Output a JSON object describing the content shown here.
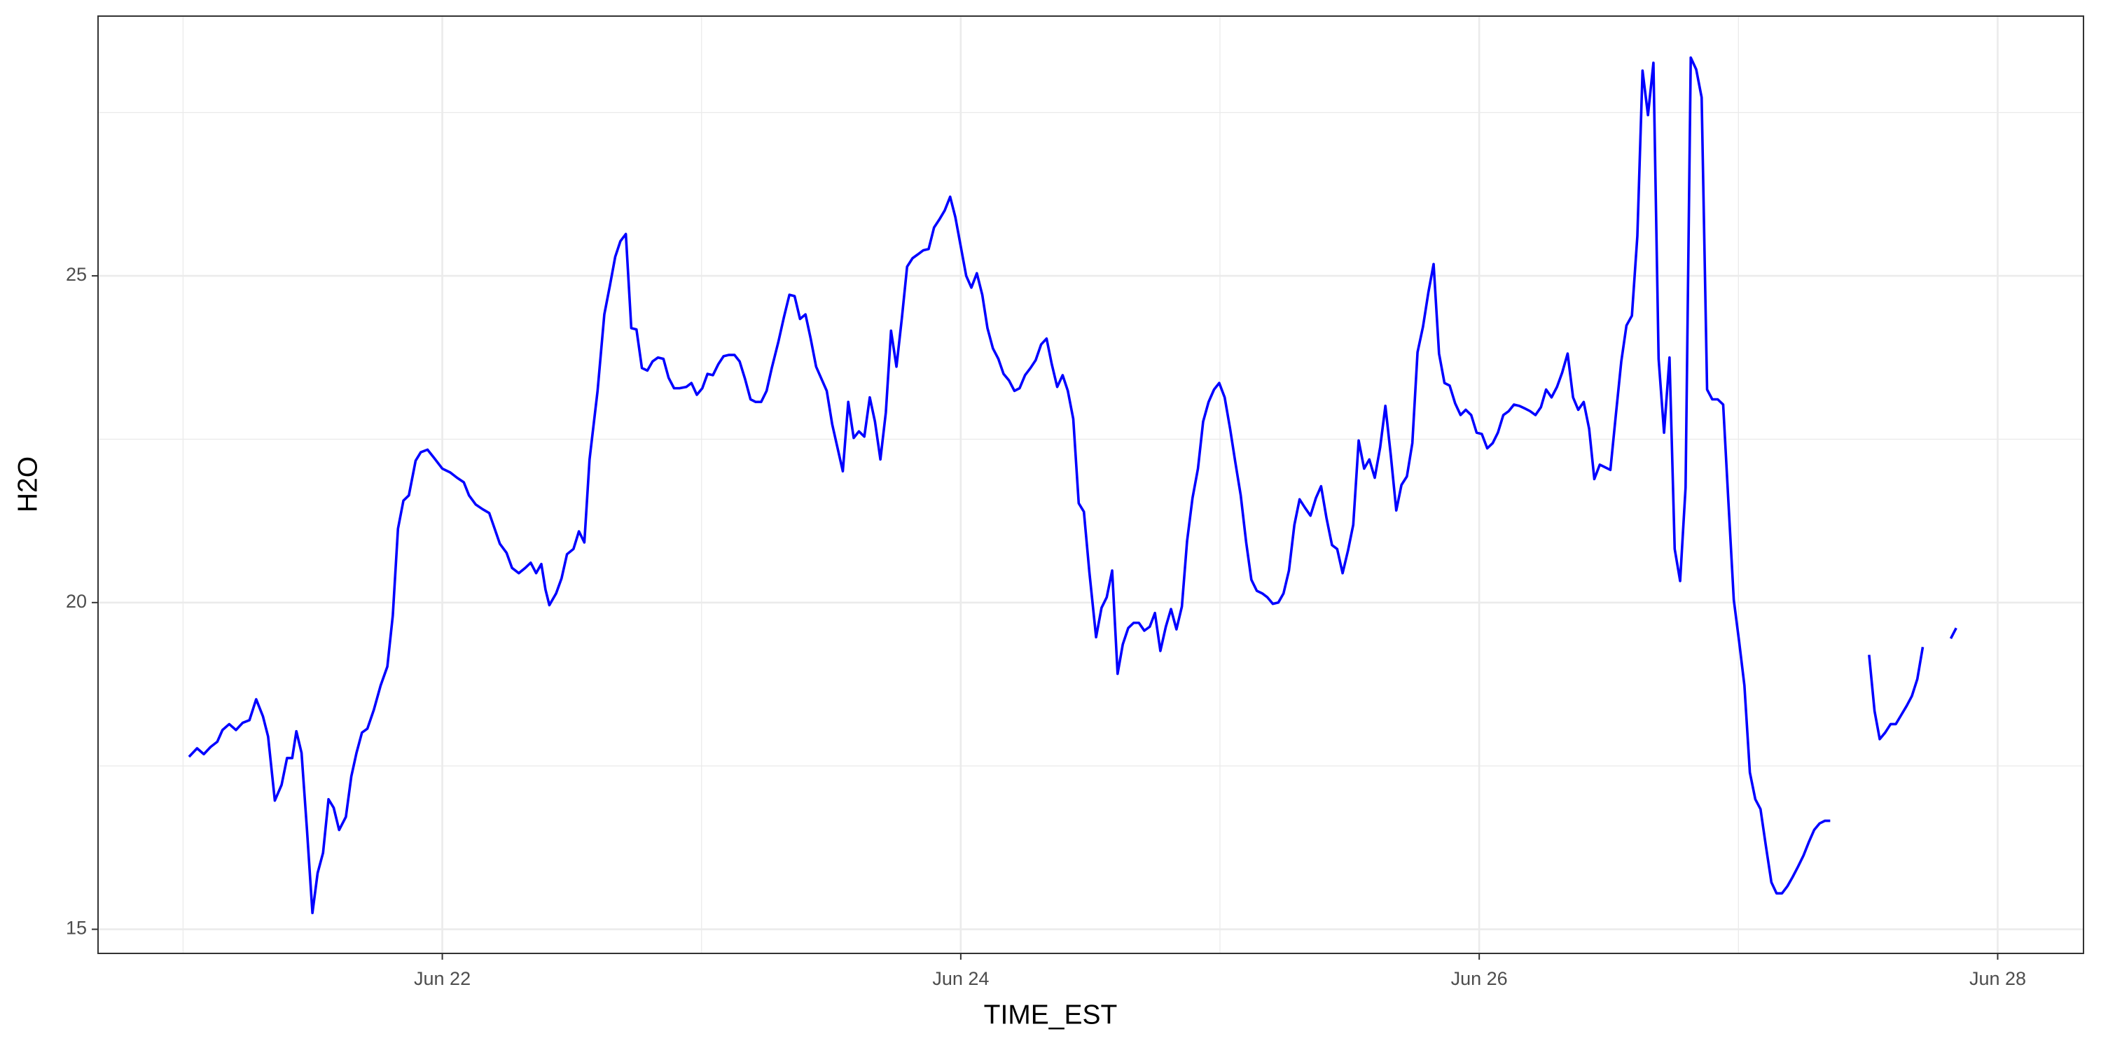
{
  "chart_data": {
    "type": "line",
    "x_label": "TIME_EST",
    "y_label": "H2O",
    "x": [
      21.023,
      21.054,
      21.08,
      21.106,
      21.132,
      21.152,
      21.178,
      21.204,
      21.23,
      21.256,
      21.282,
      21.308,
      21.328,
      21.354,
      21.38,
      21.401,
      21.421,
      21.437,
      21.457,
      21.478,
      21.499,
      21.519,
      21.54,
      21.561,
      21.581,
      21.602,
      21.628,
      21.649,
      21.669,
      21.69,
      21.711,
      21.736,
      21.762,
      21.788,
      21.809,
      21.829,
      21.85,
      21.871,
      21.897,
      21.917,
      21.943,
      21.969,
      22.0,
      22.031,
      22.057,
      22.083,
      22.103,
      22.129,
      22.155,
      22.181,
      22.202,
      22.222,
      22.248,
      22.269,
      22.295,
      22.32,
      22.341,
      22.362,
      22.382,
      22.398,
      22.413,
      22.439,
      22.46,
      22.481,
      22.506,
      22.527,
      22.548,
      22.568,
      22.599,
      22.625,
      22.646,
      22.667,
      22.687,
      22.708,
      22.729,
      22.749,
      22.77,
      22.791,
      22.811,
      22.832,
      22.853,
      22.873,
      22.894,
      22.915,
      22.941,
      22.961,
      22.982,
      23.003,
      23.023,
      23.044,
      23.065,
      23.085,
      23.106,
      23.127,
      23.147,
      23.168,
      23.189,
      23.209,
      23.23,
      23.251,
      23.271,
      23.297,
      23.318,
      23.339,
      23.359,
      23.38,
      23.401,
      23.421,
      23.442,
      23.463,
      23.483,
      23.504,
      23.525,
      23.545,
      23.566,
      23.587,
      23.607,
      23.628,
      23.649,
      23.669,
      23.69,
      23.711,
      23.731,
      23.752,
      23.773,
      23.793,
      23.814,
      23.835,
      23.855,
      23.876,
      23.897,
      23.917,
      23.938,
      23.959,
      23.979,
      24.0,
      24.021,
      24.041,
      24.062,
      24.083,
      24.103,
      24.124,
      24.145,
      24.165,
      24.186,
      24.207,
      24.227,
      24.248,
      24.269,
      24.289,
      24.31,
      24.331,
      24.351,
      24.372,
      24.393,
      24.413,
      24.434,
      24.455,
      24.475,
      24.496,
      24.522,
      24.543,
      24.563,
      24.584,
      24.605,
      24.625,
      24.646,
      24.667,
      24.687,
      24.708,
      24.729,
      24.749,
      24.77,
      24.791,
      24.811,
      24.832,
      24.853,
      24.873,
      24.894,
      24.915,
      24.935,
      24.956,
      24.977,
      24.997,
      25.018,
      25.039,
      25.059,
      25.08,
      25.101,
      25.121,
      25.142,
      25.163,
      25.183,
      25.204,
      25.225,
      25.245,
      25.266,
      25.287,
      25.307,
      25.328,
      25.349,
      25.37,
      25.39,
      25.411,
      25.432,
      25.452,
      25.473,
      25.494,
      25.514,
      25.535,
      25.556,
      25.576,
      25.597,
      25.618,
      25.638,
      25.659,
      25.68,
      25.7,
      25.721,
      25.742,
      25.762,
      25.783,
      25.804,
      25.824,
      25.845,
      25.866,
      25.886,
      25.907,
      25.928,
      25.948,
      25.969,
      25.99,
      26.01,
      26.031,
      26.052,
      26.072,
      26.093,
      26.114,
      26.134,
      26.155,
      26.176,
      26.196,
      26.217,
      26.238,
      26.258,
      26.279,
      26.3,
      26.32,
      26.341,
      26.362,
      26.382,
      26.403,
      26.424,
      26.444,
      26.465,
      26.486,
      26.506,
      26.527,
      26.548,
      26.568,
      26.589,
      26.61,
      26.63,
      26.651,
      26.672,
      26.692,
      26.713,
      26.734,
      26.754,
      26.775,
      26.796,
      26.816,
      26.837,
      26.858,
      26.879,
      26.899,
      26.92,
      26.941,
      26.961,
      26.982,
      27.003,
      27.023,
      27.044,
      27.065,
      27.085,
      27.106,
      27.127,
      27.147,
      27.168,
      27.189,
      27.209,
      27.23,
      27.251,
      27.271,
      27.292,
      27.313,
      27.333,
      27.354,
      27.43,
      27.504,
      27.525,
      27.545,
      27.566,
      27.587,
      27.607,
      27.628,
      27.649,
      27.669,
      27.69,
      27.711,
      27.76,
      27.819,
      27.84
    ],
    "series": [
      {
        "name": "H2O",
        "color": "#0000ff",
        "values": [
          17.64,
          17.77,
          17.68,
          17.79,
          17.87,
          18.05,
          18.14,
          18.05,
          18.16,
          18.2,
          18.52,
          18.26,
          17.95,
          16.97,
          17.21,
          17.62,
          17.62,
          18.03,
          17.7,
          16.52,
          15.25,
          15.86,
          16.17,
          16.99,
          16.86,
          16.52,
          16.72,
          17.34,
          17.7,
          18.01,
          18.07,
          18.36,
          18.73,
          19.02,
          19.8,
          21.13,
          21.56,
          21.64,
          22.17,
          22.3,
          22.34,
          22.21,
          22.05,
          21.99,
          21.91,
          21.84,
          21.64,
          21.5,
          21.43,
          21.37,
          21.13,
          20.9,
          20.76,
          20.53,
          20.45,
          20.53,
          20.61,
          20.45,
          20.59,
          20.2,
          19.96,
          20.14,
          20.37,
          20.74,
          20.82,
          21.09,
          20.92,
          22.19,
          23.24,
          24.41,
          24.84,
          25.29,
          25.53,
          25.64,
          24.2,
          24.18,
          23.59,
          23.55,
          23.69,
          23.75,
          23.73,
          23.44,
          23.28,
          23.28,
          23.3,
          23.36,
          23.18,
          23.28,
          23.5,
          23.48,
          23.65,
          23.77,
          23.79,
          23.79,
          23.69,
          23.42,
          23.11,
          23.07,
          23.07,
          23.24,
          23.59,
          24.0,
          24.37,
          24.71,
          24.69,
          24.34,
          24.41,
          24.04,
          23.61,
          23.42,
          23.24,
          22.73,
          22.36,
          22.01,
          23.07,
          22.52,
          22.62,
          22.54,
          23.14,
          22.77,
          22.19,
          22.91,
          24.16,
          23.61,
          24.36,
          25.14,
          25.27,
          25.33,
          25.39,
          25.41,
          25.74,
          25.86,
          26.0,
          26.21,
          25.9,
          25.45,
          25.0,
          24.82,
          25.04,
          24.71,
          24.2,
          23.89,
          23.73,
          23.5,
          23.4,
          23.24,
          23.28,
          23.48,
          23.59,
          23.71,
          23.95,
          24.04,
          23.65,
          23.3,
          23.48,
          23.24,
          22.81,
          21.52,
          21.39,
          20.47,
          19.47,
          19.92,
          20.08,
          20.49,
          18.91,
          19.36,
          19.61,
          19.69,
          19.69,
          19.57,
          19.63,
          19.84,
          19.26,
          19.63,
          19.9,
          19.59,
          19.94,
          20.94,
          21.6,
          22.05,
          22.77,
          23.07,
          23.26,
          23.36,
          23.14,
          22.66,
          22.15,
          21.64,
          20.92,
          20.35,
          20.18,
          20.14,
          20.08,
          19.98,
          20.0,
          20.14,
          20.49,
          21.19,
          21.58,
          21.45,
          21.33,
          21.6,
          21.78,
          21.29,
          20.88,
          20.82,
          20.45,
          20.8,
          21.19,
          22.48,
          22.05,
          22.19,
          21.91,
          22.38,
          23.01,
          22.25,
          21.41,
          21.8,
          21.93,
          22.44,
          23.83,
          24.22,
          24.75,
          25.18,
          23.81,
          23.36,
          23.32,
          23.05,
          22.87,
          22.95,
          22.87,
          22.6,
          22.58,
          22.36,
          22.44,
          22.6,
          22.87,
          22.93,
          23.03,
          23.01,
          22.97,
          22.93,
          22.87,
          22.99,
          23.26,
          23.14,
          23.3,
          23.52,
          23.81,
          23.14,
          22.95,
          23.07,
          22.66,
          21.89,
          22.11,
          22.07,
          22.03,
          22.87,
          23.69,
          24.24,
          24.39,
          25.61,
          28.14,
          27.46,
          28.26,
          23.73,
          22.6,
          23.75,
          20.82,
          20.33,
          21.76,
          28.34,
          28.16,
          27.73,
          23.26,
          23.11,
          23.11,
          23.03,
          21.56,
          20.04,
          19.39,
          18.73,
          17.4,
          16.99,
          16.84,
          16.27,
          15.72,
          15.55,
          15.55,
          15.66,
          15.8,
          15.96,
          16.13,
          16.33,
          16.52,
          16.62,
          16.66,
          16.66,
          null,
          19.2,
          18.34,
          17.91,
          18.01,
          18.14,
          18.14,
          18.28,
          18.42,
          18.57,
          18.83,
          19.32,
          null,
          19.45,
          19.61
        ]
      }
    ],
    "xlim": [
      20.672,
      28.331
    ],
    "xticks": [
      {
        "value": 22,
        "label": "Jun 22"
      },
      {
        "value": 24,
        "label": "Jun 24"
      },
      {
        "value": 26,
        "label": "Jun 26"
      },
      {
        "value": 28,
        "label": "Jun 28"
      }
    ],
    "minor_xticks": [
      21,
      23,
      25,
      27
    ],
    "ylim": [
      14.631,
      28.975
    ],
    "yticks": [
      15,
      20,
      25
    ],
    "minor_yticks": [
      17.5,
      22.5,
      27.5
    ],
    "grid": true
  }
}
